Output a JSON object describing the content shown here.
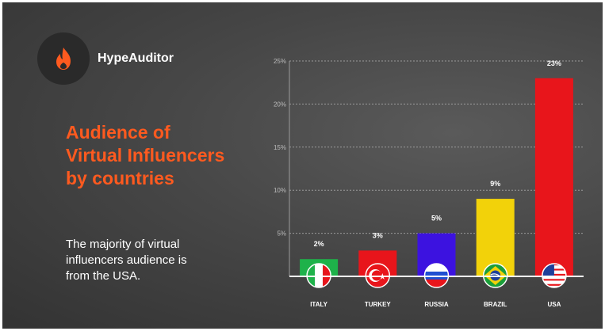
{
  "brand": {
    "name": "HypeAuditor",
    "icon": "flame-icon",
    "accent": "#ff5a1f"
  },
  "headline": {
    "line1": "Audience of",
    "line2": "Virtual Influencers",
    "line3": "by countries"
  },
  "subtext": {
    "line1": "The majority of virtual",
    "line2": "influencers audience is",
    "line3": "from the USA."
  },
  "chart_data": {
    "type": "bar",
    "categories": [
      "ITALY",
      "TURKEY",
      "RUSSIA",
      "BRAZIL",
      "USA"
    ],
    "values": [
      2,
      3,
      5,
      9,
      23
    ],
    "value_labels": [
      "2%",
      "3%",
      "5%",
      "9%",
      "23%"
    ],
    "colors": [
      "#1eb24a",
      "#e8151b",
      "#3c12e0",
      "#f2d20a",
      "#e8151b"
    ],
    "flags": [
      "italy-flag-icon",
      "turkey-flag-icon",
      "russia-flag-icon",
      "brazil-flag-icon",
      "usa-flag-icon"
    ],
    "ylim": [
      0,
      25
    ],
    "yticks": [
      5,
      10,
      15,
      20,
      25
    ],
    "ytick_labels": [
      "5%",
      "10%",
      "15%",
      "20%",
      "25%"
    ],
    "grid": true
  }
}
